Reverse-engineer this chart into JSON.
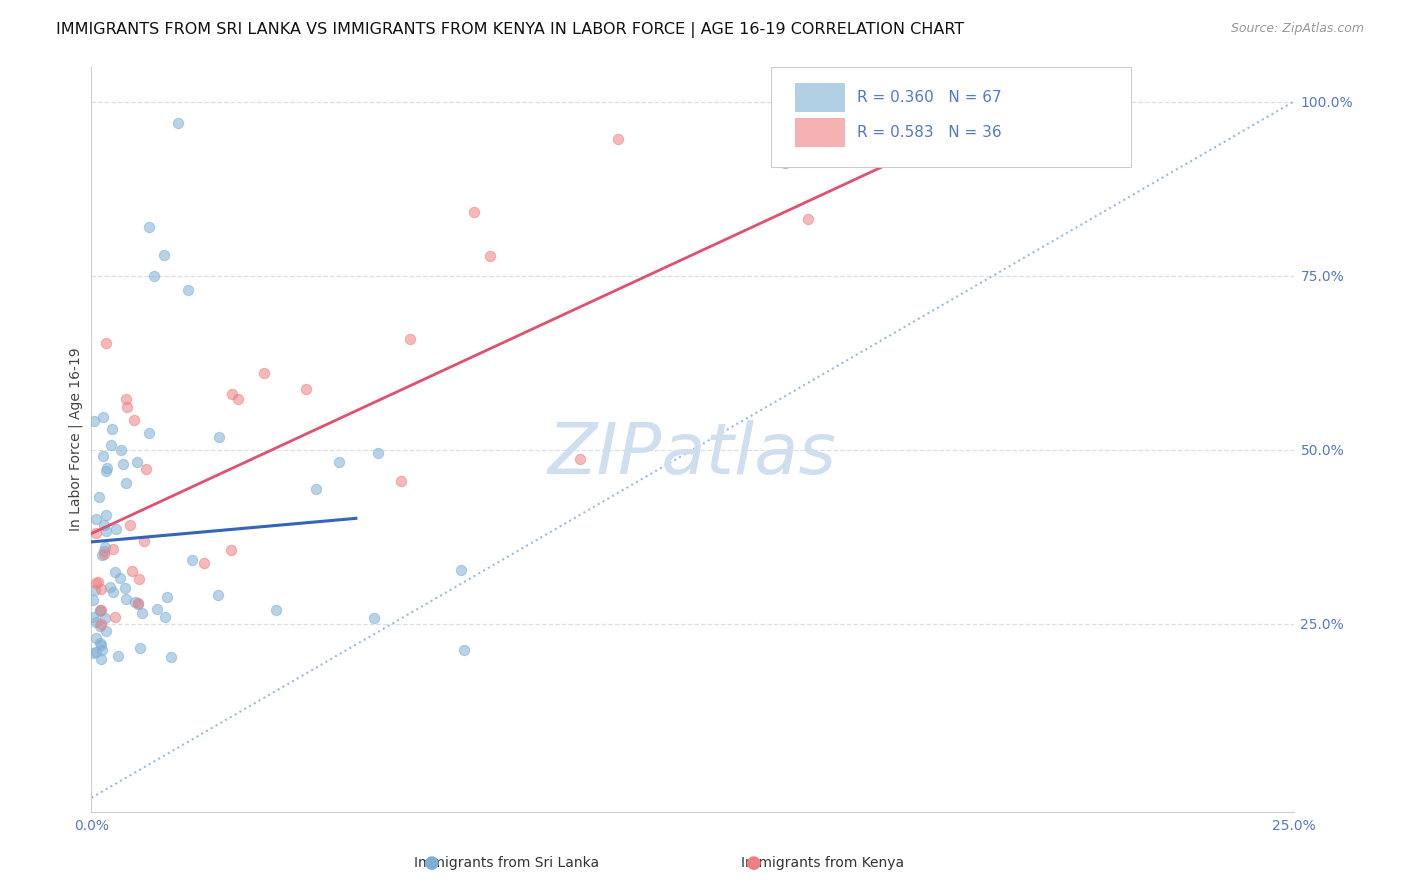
{
  "title": "IMMIGRANTS FROM SRI LANKA VS IMMIGRANTS FROM KENYA IN LABOR FORCE | AGE 16-19 CORRELATION CHART",
  "source": "Source: ZipAtlas.com",
  "ylabel": "In Labor Force | Age 16-19",
  "xlim": [
    0.0,
    0.25
  ],
  "ylim": [
    -0.02,
    1.05
  ],
  "right_ytick_vals": [
    0.25,
    0.5,
    0.75,
    1.0
  ],
  "right_yticklabels": [
    "25.0%",
    "50.0%",
    "75.0%",
    "100.0%"
  ],
  "bottom_xtick_vals": [
    0.0,
    0.05,
    0.1,
    0.15,
    0.2,
    0.25
  ],
  "bottom_xticklabels": [
    "0.0%",
    "",
    "",
    "",
    "",
    "25.0%"
  ],
  "sri_lanka_R": 0.36,
  "sri_lanka_N": 67,
  "kenya_R": 0.583,
  "kenya_N": 36,
  "sri_lanka_color": "#7EB0D5",
  "kenya_color": "#F08080",
  "sri_lanka_trend_color": "#3366BB",
  "kenya_trend_color": "#E05070",
  "diagonal_color": "#99BBDD",
  "watermark_color": "#D0DFF0",
  "background_color": "#FFFFFF",
  "grid_color": "#DDDDEE",
  "title_fontsize": 11.5,
  "axis_label_color": "#5577CC",
  "tick_label_color": "#5577CC",
  "ylabel_color": "#444444"
}
